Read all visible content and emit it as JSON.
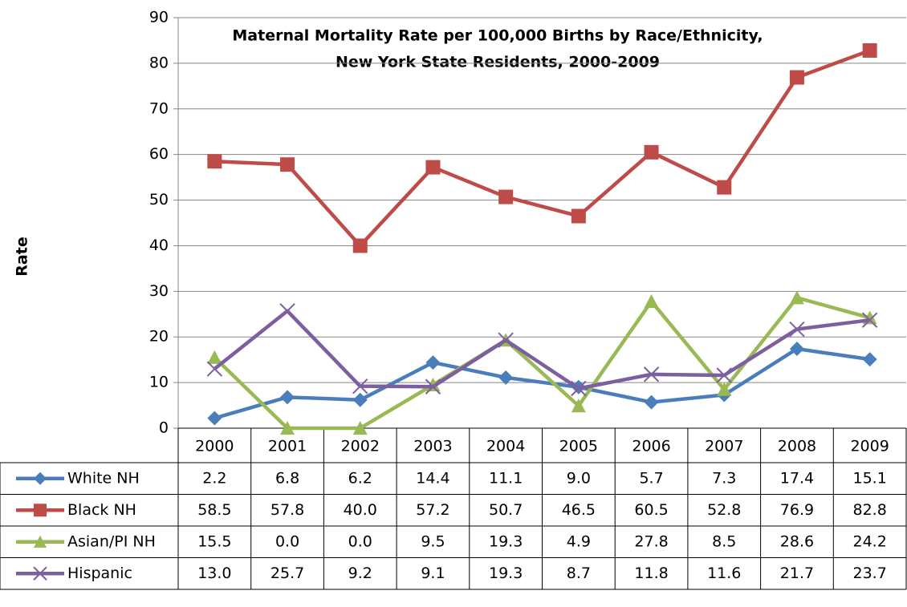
{
  "chart_data": {
    "type": "line",
    "title": "Maternal Mortality Rate per 100,000 Births by Race/Ethnicity,",
    "subtitle": "New York State Residents, 2000-2009",
    "y_label": "Rate",
    "categories": [
      "2000",
      "2001",
      "2002",
      "2003",
      "2004",
      "2005",
      "2006",
      "2007",
      "2008",
      "2009"
    ],
    "ylim": [
      0,
      90
    ],
    "yticks": [
      0,
      10,
      20,
      30,
      40,
      50,
      60,
      70,
      80,
      90
    ],
    "grid": true,
    "series": [
      {
        "name": "White NH",
        "color": "#4a7ebb",
        "marker": "diamond",
        "values": [
          2.2,
          6.8,
          6.2,
          14.4,
          11.1,
          9.0,
          5.7,
          7.3,
          17.4,
          15.1
        ],
        "value_labels": [
          "2.2",
          "6.8",
          "6.2",
          "14.4",
          "11.1",
          "9.0",
          "5.7",
          "7.3",
          "17.4",
          "15.1"
        ]
      },
      {
        "name": "Black NH",
        "color": "#be4b48",
        "marker": "square",
        "values": [
          58.5,
          57.8,
          40.0,
          57.2,
          50.7,
          46.5,
          60.5,
          52.8,
          76.9,
          82.8
        ],
        "value_labels": [
          "58.5",
          "57.8",
          "40.0",
          "57.2",
          "50.7",
          "46.5",
          "60.5",
          "52.8",
          "76.9",
          "82.8"
        ]
      },
      {
        "name": "Asian/PI NH",
        "color": "#98b954",
        "marker": "triangle",
        "values": [
          15.5,
          0.0,
          0.0,
          9.5,
          19.3,
          4.9,
          27.8,
          8.5,
          28.6,
          24.2
        ],
        "value_labels": [
          "15.5",
          "0.0",
          "0.0",
          "9.5",
          "19.3",
          "4.9",
          "27.8",
          "8.5",
          "28.6",
          "24.2"
        ]
      },
      {
        "name": "Hispanic",
        "color": "#7d5fa0",
        "marker": "x",
        "values": [
          13.0,
          25.7,
          9.2,
          9.1,
          19.3,
          8.7,
          11.8,
          11.6,
          21.7,
          23.7
        ],
        "value_labels": [
          "13.0",
          "25.7",
          "9.2",
          "9.1",
          "19.3",
          "8.7",
          "11.8",
          "11.6",
          "21.7",
          "23.7"
        ]
      }
    ]
  }
}
